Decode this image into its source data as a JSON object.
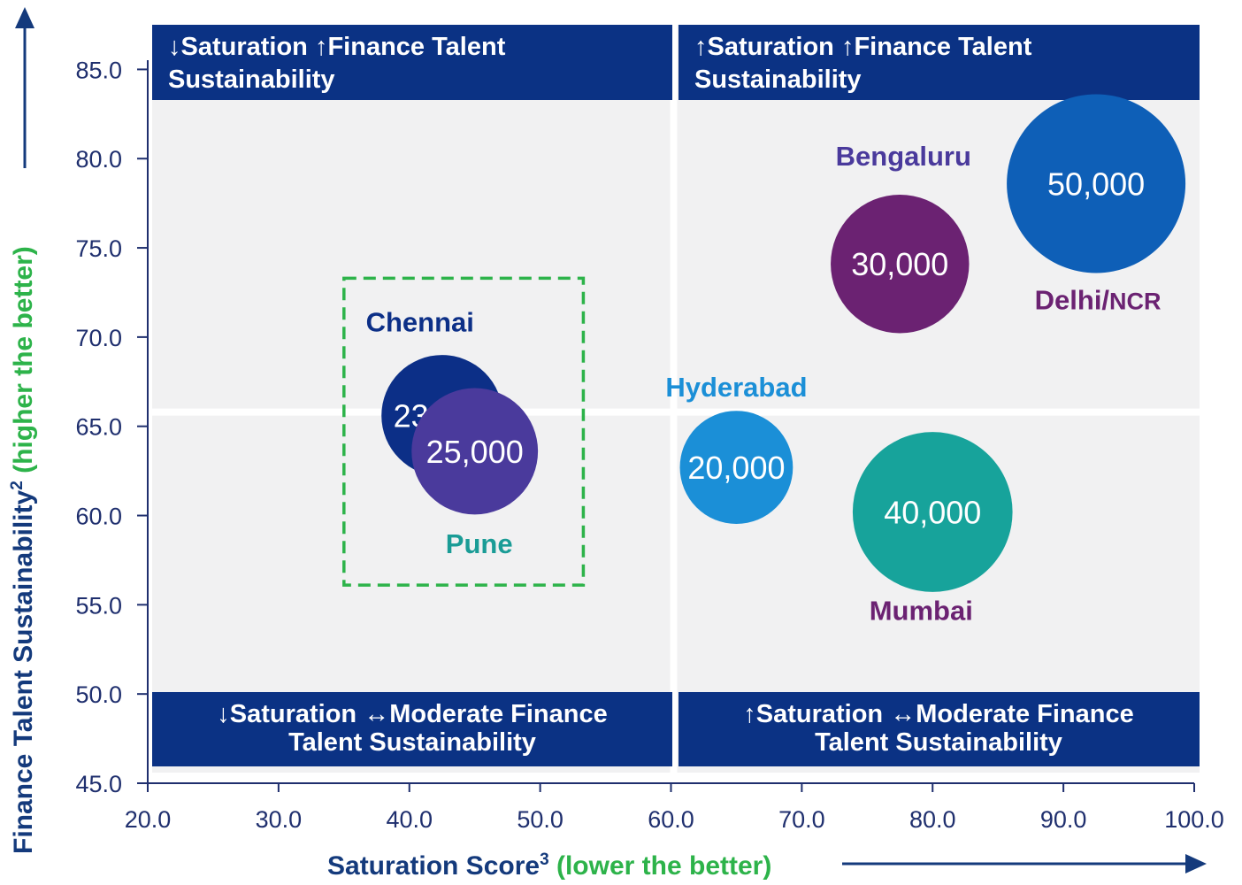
{
  "chart_data": {
    "type": "bubble",
    "xlabel": "Saturation Score",
    "xlabel_superscript": "3",
    "xlabel_note": "(lower the better)",
    "ylabel": "Finance Talent Sustainability",
    "ylabel_superscript": "2",
    "ylabel_note": "(higher the better)",
    "xlim": [
      20,
      100
    ],
    "ylim": [
      45,
      87.5
    ],
    "x_ticks": [
      20,
      30,
      40,
      50,
      60,
      70,
      80,
      90,
      100
    ],
    "y_ticks": [
      45,
      50,
      55,
      60,
      65,
      70,
      75,
      80,
      85
    ],
    "x_tick_labels": [
      "20.0",
      "30.0",
      "40.0",
      "50.0",
      "60.0",
      "70.0",
      "80.0",
      "90.0",
      "100.0"
    ],
    "y_tick_labels": [
      "45.0",
      "50.0",
      "55.0",
      "60.0",
      "65.0",
      "70.0",
      "75.0",
      "80.0",
      "85.0"
    ],
    "quadrant_divider": {
      "x": 60,
      "y": 65.8
    },
    "quadrants": [
      {
        "title_lines": [
          "↓Saturation ↑Finance Talent",
          "Sustainability"
        ],
        "position": "top-left"
      },
      {
        "title_lines": [
          "↑Saturation ↑Finance Talent",
          "Sustainability"
        ],
        "position": "top-right"
      },
      {
        "title_lines": [
          "↓Saturation ↔Moderate Finance",
          "Talent Sustainability"
        ],
        "position": "bottom-left"
      },
      {
        "title_lines": [
          "↑Saturation ↔Moderate Finance",
          "Talent Sustainability"
        ],
        "position": "bottom-right"
      }
    ],
    "points": [
      {
        "name": "Chennai",
        "x": 42.5,
        "y": 65.6,
        "value": "23,000",
        "size": 23000,
        "color": "#0c2f87",
        "label_color": "#0c2f87"
      },
      {
        "name": "Pune",
        "x": 45.0,
        "y": 63.6,
        "value": "25,000",
        "size": 25000,
        "color": "#4a3a9c",
        "label_color": "#1a9c96"
      },
      {
        "name": "Hyderabad",
        "x": 65.0,
        "y": 62.7,
        "value": "20,000",
        "size": 20000,
        "color": "#1b8fd7",
        "label_color": "#1b8fd7"
      },
      {
        "name": "Mumbai",
        "x": 80.0,
        "y": 60.2,
        "value": "40,000",
        "size": 40000,
        "color": "#17a39b",
        "label_color": "#6b2272"
      },
      {
        "name": "Bengaluru",
        "x": 77.5,
        "y": 74.1,
        "value": "30,000",
        "size": 30000,
        "color": "#6b2272",
        "label_color": "#4a3a9c"
      },
      {
        "name": "Delhi/",
        "name_suffix": "NCR",
        "x": 92.5,
        "y": 78.6,
        "value": "50,000",
        "size": 50000,
        "color": "#0e5fb7",
        "label_color": "#6b2272"
      }
    ],
    "highlight_box": {
      "x": [
        35,
        53.3
      ],
      "y": [
        56.1,
        73.3
      ],
      "color": "#2db34a",
      "style": "dashed"
    },
    "colors": {
      "axis_text": "#1f2f6e",
      "axis_title": "#143a7c",
      "axis_note": "#2db34a",
      "quadrant_fill": "#0b3284",
      "plot_background": "#f1f1f2"
    }
  }
}
